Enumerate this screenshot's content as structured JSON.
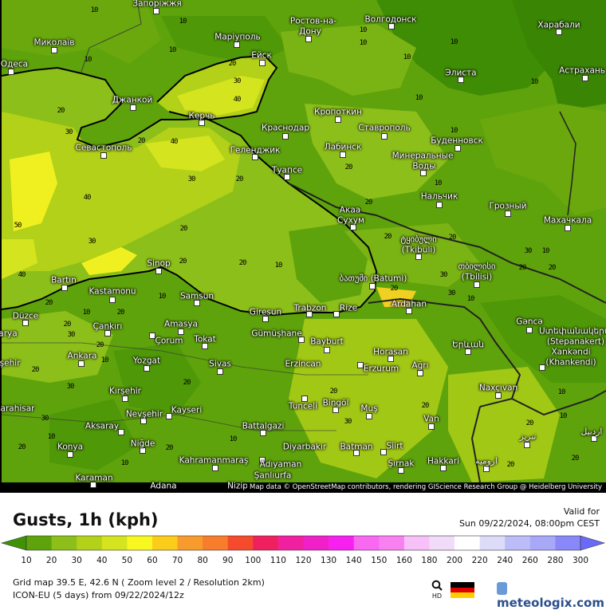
{
  "title": "Gusts, 1h (kph)",
  "valid_label": "Valid for",
  "valid_time": "Sun 09/22/2024, 08:00pm CEST",
  "info_line1": "Grid map 39.5 E, 42.6 N ( Zoom level 2 / Resolution 2km)",
  "info_line2": "ICON-EU (5 days) from  09/22/2024/12z",
  "attribution": "Map data © OpenStreetMap contributors, rendering GIScience Research Group @ Heidelberg University",
  "logo_text": "meteologix.com",
  "hd_label": "HD",
  "icons": {
    "search": "magnifier-hd-icon",
    "flag": "germany-flag-icon",
    "logo": "meteologix-logo-icon"
  },
  "colorbar": {
    "ticks": [
      "10",
      "20",
      "30",
      "40",
      "50",
      "60",
      "70",
      "80",
      "90",
      "100",
      "110",
      "120",
      "130",
      "140",
      "150",
      "160",
      "180",
      "200",
      "220",
      "240",
      "260",
      "280",
      "300"
    ],
    "under_color": "#3f9206",
    "over_color": "#6a6af8",
    "colors": [
      "#5fa30c",
      "#8cbf1a",
      "#b2d118",
      "#d4e41e",
      "#f8f820",
      "#fccc1a",
      "#f79c2c",
      "#f77c2c",
      "#f54a2c",
      "#f02060",
      "#f020a0",
      "#f020c8",
      "#f820f0",
      "#f868f0",
      "#f880f0",
      "#f8c0f8",
      "#f0dcf8",
      "#ffffff",
      "#dcdcf8",
      "#bcbcf8",
      "#a8a8f8",
      "#8888f8"
    ]
  },
  "map": {
    "cities": [
      "Запоріжжя",
      "Миколаїв",
      "Одеса",
      "Маріуполь",
      "Ейск",
      "Ростов-на-",
      "Дону",
      "Волгодонск",
      "Харабали",
      "Элиста",
      "Астрахань",
      "Джанкой",
      "Керчь",
      "Краснодар",
      "Кропоткин",
      "Ставрополь",
      "Лабинск",
      "Буденновск",
      "Севастополь",
      "Геленджик",
      "Туапсе",
      "Минеральные",
      "Воды",
      "Нальчик",
      "Грозный",
      "Махачкала",
      "Акаа",
      "Сухум",
      "ტყიბული",
      "(Tkibuli)",
      "თბილისი",
      "(Tbilisi)",
      "ბათუმი (Batumi)",
      "Sinop",
      "Bartın",
      "Kastamonu",
      "Samsun",
      "Giresun",
      "Trabzon",
      "Rize",
      "Ardahan",
      "Düzce",
      "Çankırı",
      "Amasya",
      "Çorum",
      "Tokat",
      "Gümüşhane",
      "Bayburt",
      "Horasan",
      "Erzincan",
      "Erzurum",
      "Ağrı",
      "Ankara",
      "Yozgat",
      "Sivas",
      "Kırşehir",
      "Nevşehir",
      "Kayseri",
      "Aksaray",
      "Niğde",
      "Konya",
      "Battalgazi",
      "Kahramanmaraş",
      "Adıyaman",
      "Diyarbakır",
      "Karaman",
      "Adana",
      "Nizip",
      "Şanlıurfa",
      "Tunceli",
      "Bingöl",
      "Muş",
      "Van",
      "Batman",
      "Siirt",
      "Şırnak",
      "Hakkari",
      "ارومیه",
      "تبریز",
      "اردبیل",
      "Naxçıvan",
      "Երևան",
      "Gəncə",
      "Ստեփանակերտ",
      "(Stepanakert)",
      "Xankəndi",
      "(Khankendi)",
      "Eskişehir",
      "arahisar",
      "arya"
    ],
    "contour_labels": [
      "10",
      "10",
      "10",
      "10",
      "20",
      "30",
      "40",
      "20",
      "30",
      "40",
      "20",
      "10",
      "10",
      "10",
      "10",
      "10",
      "10",
      "10",
      "20",
      "20",
      "30",
      "40",
      "50",
      "30",
      "40",
      "20",
      "20",
      "20",
      "10",
      "20",
      "20",
      "10",
      "20",
      "30",
      "10",
      "20",
      "20",
      "30",
      "30",
      "10",
      "20",
      "20",
      "10",
      "10",
      "20",
      "20",
      "30",
      "20",
      "20",
      "10",
      "30",
      "20",
      "30",
      "20",
      "10",
      "10",
      "20",
      "10",
      "20",
      "30",
      "20",
      "10",
      "20",
      "10",
      "20",
      "20"
    ]
  }
}
